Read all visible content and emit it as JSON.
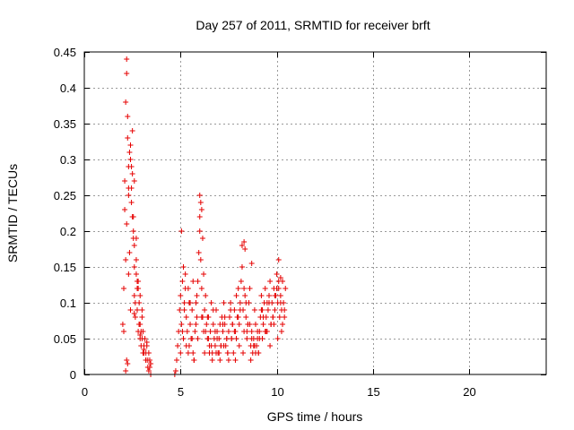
{
  "chart_data": {
    "type": "scatter",
    "title": "Day 257 of 2011, SRMTID for receiver brft",
    "xlabel": "GPS time / hours",
    "ylabel": "SRMTID / TECUs",
    "xlim": [
      0,
      24
    ],
    "ylim": [
      0,
      0.45
    ],
    "xticks": [
      0,
      5,
      10,
      15,
      20
    ],
    "xtick_labels": [
      "0",
      "5",
      "10",
      "15",
      "20"
    ],
    "yticks": [
      0,
      0.05,
      0.1,
      0.15,
      0.2,
      0.25,
      0.3,
      0.35,
      0.4,
      0.45
    ],
    "ytick_labels": [
      "0",
      "0.05",
      "0.1",
      "0.15",
      "0.2",
      "0.25",
      "0.3",
      "0.35",
      "0.4",
      "0.45"
    ],
    "grid": true,
    "marker": "plus",
    "color": "#e60000",
    "series": [
      {
        "x": [
          2.0,
          2.05,
          2.1,
          2.15,
          2.2,
          2.2,
          2.25,
          2.3,
          2.35,
          2.4,
          2.45,
          2.5,
          2.55,
          2.6,
          2.6,
          2.65,
          2.7,
          2.75,
          2.8,
          2.85,
          2.9,
          2.95,
          3.0,
          3.05,
          3.1,
          3.15,
          3.2,
          3.25,
          3.3,
          3.35,
          3.4,
          3.45,
          2.1,
          2.2,
          2.3,
          2.4,
          2.5,
          2.6,
          2.7,
          2.8,
          2.9,
          3.0,
          3.1,
          3.2,
          2.15,
          2.25,
          2.35,
          2.45,
          2.55,
          2.65,
          2.75,
          2.85,
          2.95,
          3.05,
          2.05,
          2.3,
          2.6,
          2.9,
          3.2,
          2.4,
          2.7,
          3.0,
          3.3,
          2.2,
          2.5,
          2.8,
          2.25,
          2.55,
          2.85,
          3.4,
          2.15,
          2.45,
          2.75,
          3.35,
          3.1,
          3.25,
          3.45,
          2.3,
          2.6,
          2.9,
          4.7,
          4.75,
          4.8,
          4.85,
          4.9,
          4.95,
          5.0,
          5.05,
          5.1,
          5.15,
          5.2,
          5.25,
          5.3,
          5.35,
          5.4,
          5.45,
          5.5,
          5.55,
          5.6,
          5.65,
          5.7,
          5.75,
          5.8,
          5.85,
          5.9,
          5.95,
          6.0,
          6.05,
          6.1,
          6.15,
          6.2,
          6.25,
          6.3,
          6.35,
          6.4,
          6.45,
          6.5,
          6.55,
          6.6,
          6.65,
          6.7,
          6.75,
          6.8,
          6.85,
          6.9,
          6.95,
          7.0,
          7.05,
          7.1,
          7.15,
          7.2,
          7.25,
          7.3,
          7.35,
          7.4,
          7.45,
          7.5,
          7.55,
          7.6,
          7.65,
          7.7,
          7.75,
          7.8,
          7.85,
          7.9,
          7.95,
          8.0,
          8.05,
          8.1,
          8.15,
          8.2,
          8.25,
          8.3,
          8.35,
          8.4,
          8.45,
          8.5,
          8.55,
          8.6,
          8.65,
          8.7,
          8.75,
          8.8,
          8.85,
          8.9,
          8.95,
          9.0,
          9.05,
          9.1,
          9.15,
          9.2,
          9.25,
          9.3,
          9.35,
          9.4,
          9.45,
          9.5,
          9.55,
          9.6,
          9.65,
          9.7,
          9.75,
          9.8,
          9.85,
          9.9,
          9.95,
          10.0,
          10.05,
          10.1,
          10.15,
          10.2,
          10.25,
          10.3,
          10.35,
          10.4,
          10.45,
          5.0,
          5.2,
          5.4,
          5.6,
          5.8,
          6.0,
          6.2,
          6.4,
          6.6,
          6.8,
          7.0,
          7.2,
          7.4,
          7.6,
          7.8,
          8.0,
          8.2,
          8.4,
          8.6,
          8.8,
          9.0,
          9.2,
          9.4,
          9.6,
          9.8,
          10.0,
          10.2,
          10.4,
          5.1,
          5.3,
          5.5,
          5.7,
          5.9,
          6.1,
          6.3,
          6.5,
          6.7,
          6.9,
          7.1,
          7.3,
          7.5,
          7.7,
          7.9,
          8.1,
          8.3,
          8.5,
          8.7,
          8.9,
          9.1,
          9.3,
          9.5,
          9.7,
          9.9,
          10.1,
          10.3,
          6.0,
          6.05,
          6.1,
          6.15,
          8.3,
          8.35,
          8.7,
          10.1,
          10.2,
          5.05,
          5.15,
          5.25,
          5.45,
          5.65,
          5.85,
          6.25,
          6.45,
          6.65,
          6.85,
          7.05,
          7.25,
          7.45,
          7.65,
          7.85,
          8.05,
          8.25,
          8.45,
          8.65,
          8.85,
          9.05,
          9.25,
          9.45,
          9.65,
          9.85,
          10.05,
          10.25
        ],
        "y": [
          0.07,
          0.12,
          0.27,
          0.38,
          0.44,
          0.21,
          0.33,
          0.29,
          0.17,
          0.09,
          0.26,
          0.34,
          0.22,
          0.15,
          0.11,
          0.08,
          0.19,
          0.13,
          0.06,
          0.1,
          0.07,
          0.04,
          0.09,
          0.06,
          0.03,
          0.05,
          0.02,
          0.04,
          0.01,
          0.03,
          0.02,
          0.0,
          0.23,
          0.42,
          0.25,
          0.3,
          0.28,
          0.18,
          0.14,
          0.12,
          0.05,
          0.08,
          0.04,
          0.03,
          0.16,
          0.36,
          0.31,
          0.24,
          0.2,
          0.1,
          0.09,
          0.07,
          0.06,
          0.03,
          0.06,
          0.26,
          0.27,
          0.11,
          0.02,
          0.32,
          0.16,
          0.05,
          0.02,
          0.02,
          0.22,
          0.13,
          0.015,
          0.19,
          0.07,
          0.01,
          0.005,
          0.29,
          0.12,
          0.005,
          0.035,
          0.045,
          0.015,
          0.14,
          0.085,
          0.055,
          0.0,
          0.005,
          0.02,
          0.04,
          0.06,
          0.09,
          0.11,
          0.07,
          0.13,
          0.05,
          0.1,
          0.14,
          0.08,
          0.06,
          0.03,
          0.04,
          0.07,
          0.05,
          0.09,
          0.03,
          0.02,
          0.06,
          0.1,
          0.08,
          0.13,
          0.17,
          0.22,
          0.16,
          0.12,
          0.08,
          0.06,
          0.09,
          0.11,
          0.07,
          0.05,
          0.08,
          0.04,
          0.06,
          0.1,
          0.03,
          0.07,
          0.05,
          0.04,
          0.09,
          0.06,
          0.03,
          0.05,
          0.07,
          0.04,
          0.08,
          0.06,
          0.1,
          0.07,
          0.04,
          0.05,
          0.03,
          0.06,
          0.08,
          0.1,
          0.05,
          0.07,
          0.03,
          0.09,
          0.06,
          0.11,
          0.08,
          0.12,
          0.07,
          0.1,
          0.13,
          0.15,
          0.09,
          0.06,
          0.11,
          0.08,
          0.05,
          0.07,
          0.1,
          0.12,
          0.04,
          0.06,
          0.03,
          0.05,
          0.09,
          0.07,
          0.04,
          0.06,
          0.03,
          0.05,
          0.08,
          0.11,
          0.09,
          0.07,
          0.1,
          0.12,
          0.08,
          0.06,
          0.09,
          0.11,
          0.13,
          0.07,
          0.1,
          0.08,
          0.12,
          0.09,
          0.11,
          0.14,
          0.1,
          0.12,
          0.08,
          0.11,
          0.09,
          0.13,
          0.1,
          0.08,
          0.12,
          0.03,
          0.09,
          0.12,
          0.05,
          0.07,
          0.2,
          0.14,
          0.08,
          0.04,
          0.06,
          0.03,
          0.07,
          0.05,
          0.09,
          0.06,
          0.08,
          0.18,
          0.1,
          0.07,
          0.04,
          0.05,
          0.09,
          0.06,
          0.1,
          0.08,
          0.12,
          0.1,
          0.09,
          0.06,
          0.04,
          0.1,
          0.02,
          0.05,
          0.08,
          0.06,
          0.03,
          0.09,
          0.05,
          0.04,
          0.08,
          0.02,
          0.07,
          0.05,
          0.09,
          0.12,
          0.07,
          0.05,
          0.03,
          0.06,
          0.08,
          0.1,
          0.07,
          0.11,
          0.13,
          0.07,
          0.25,
          0.24,
          0.23,
          0.19,
          0.185,
          0.175,
          0.155,
          0.16,
          0.135,
          0.2,
          0.15,
          0.12,
          0.1,
          0.13,
          0.11,
          0.03,
          0.05,
          0.02,
          0.03,
          0.02,
          0.04,
          0.03,
          0.05,
          0.02,
          0.04,
          0.03,
          0.06,
          0.02,
          0.04,
          0.03,
          0.05,
          0.06,
          0.04,
          0.07,
          0.05,
          0.06
        ]
      }
    ]
  }
}
